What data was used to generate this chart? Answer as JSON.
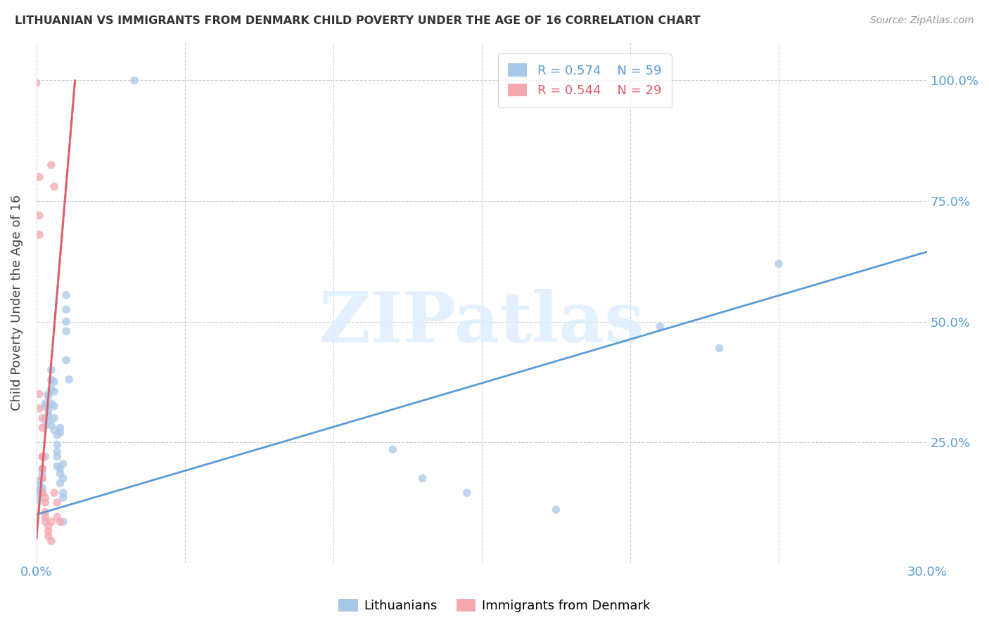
{
  "title": "LITHUANIAN VS IMMIGRANTS FROM DENMARK CHILD POVERTY UNDER THE AGE OF 16 CORRELATION CHART",
  "source": "Source: ZipAtlas.com",
  "ylabel": "Child Poverty Under the Age of 16",
  "legend_blue_r": "R = 0.574",
  "legend_blue_n": "N = 59",
  "legend_pink_r": "R = 0.544",
  "legend_pink_n": "N = 29",
  "blue_color": "#a8c8e8",
  "pink_color": "#f4a8b0",
  "blue_line_color": "#5b9bd5",
  "pink_line_color": "#e05c6a",
  "watermark": "ZIPatlas",
  "blue_scatter": [
    [
      0.0,
      0.145
    ],
    [
      0.001,
      0.15
    ],
    [
      0.001,
      0.16
    ],
    [
      0.001,
      0.17
    ],
    [
      0.001,
      0.13
    ],
    [
      0.002,
      0.175
    ],
    [
      0.002,
      0.155
    ],
    [
      0.002,
      0.195
    ],
    [
      0.002,
      0.145
    ],
    [
      0.002,
      0.185
    ],
    [
      0.003,
      0.22
    ],
    [
      0.003,
      0.3
    ],
    [
      0.003,
      0.325
    ],
    [
      0.003,
      0.33
    ],
    [
      0.003,
      0.285
    ],
    [
      0.004,
      0.345
    ],
    [
      0.004,
      0.315
    ],
    [
      0.004,
      0.35
    ],
    [
      0.004,
      0.295
    ],
    [
      0.004,
      0.305
    ],
    [
      0.005,
      0.36
    ],
    [
      0.005,
      0.38
    ],
    [
      0.005,
      0.285
    ],
    [
      0.005,
      0.4
    ],
    [
      0.005,
      0.33
    ],
    [
      0.006,
      0.275
    ],
    [
      0.006,
      0.325
    ],
    [
      0.006,
      0.355
    ],
    [
      0.006,
      0.375
    ],
    [
      0.006,
      0.3
    ],
    [
      0.007,
      0.265
    ],
    [
      0.007,
      0.245
    ],
    [
      0.007,
      0.2
    ],
    [
      0.007,
      0.22
    ],
    [
      0.007,
      0.23
    ],
    [
      0.008,
      0.185
    ],
    [
      0.008,
      0.195
    ],
    [
      0.008,
      0.165
    ],
    [
      0.008,
      0.28
    ],
    [
      0.008,
      0.27
    ],
    [
      0.009,
      0.145
    ],
    [
      0.009,
      0.205
    ],
    [
      0.009,
      0.135
    ],
    [
      0.009,
      0.085
    ],
    [
      0.009,
      0.175
    ],
    [
      0.01,
      0.555
    ],
    [
      0.01,
      0.525
    ],
    [
      0.01,
      0.48
    ],
    [
      0.01,
      0.5
    ],
    [
      0.01,
      0.42
    ],
    [
      0.011,
      0.38
    ],
    [
      0.033,
      1.0
    ],
    [
      0.12,
      0.235
    ],
    [
      0.13,
      0.175
    ],
    [
      0.145,
      0.145
    ],
    [
      0.175,
      0.11
    ],
    [
      0.21,
      0.49
    ],
    [
      0.23,
      0.445
    ],
    [
      0.25,
      0.62
    ]
  ],
  "pink_scatter": [
    [
      0.0,
      0.995
    ],
    [
      0.001,
      0.8
    ],
    [
      0.001,
      0.72
    ],
    [
      0.001,
      0.68
    ],
    [
      0.001,
      0.35
    ],
    [
      0.001,
      0.32
    ],
    [
      0.002,
      0.3
    ],
    [
      0.002,
      0.28
    ],
    [
      0.002,
      0.22
    ],
    [
      0.002,
      0.22
    ],
    [
      0.002,
      0.195
    ],
    [
      0.002,
      0.175
    ],
    [
      0.002,
      0.145
    ],
    [
      0.003,
      0.135
    ],
    [
      0.003,
      0.125
    ],
    [
      0.003,
      0.105
    ],
    [
      0.003,
      0.095
    ],
    [
      0.003,
      0.085
    ],
    [
      0.004,
      0.075
    ],
    [
      0.004,
      0.065
    ],
    [
      0.004,
      0.055
    ],
    [
      0.005,
      0.045
    ],
    [
      0.005,
      0.085
    ],
    [
      0.005,
      0.825
    ],
    [
      0.006,
      0.78
    ],
    [
      0.006,
      0.145
    ],
    [
      0.007,
      0.125
    ],
    [
      0.007,
      0.095
    ],
    [
      0.008,
      0.085
    ]
  ],
  "xlim": [
    0.0,
    0.3
  ],
  "ylim": [
    0.0,
    1.08
  ],
  "blue_trend_x": [
    0.0,
    0.3
  ],
  "blue_trend_y": [
    0.1,
    0.645
  ],
  "pink_trend_x": [
    0.0,
    0.013
  ],
  "pink_trend_y": [
    0.05,
    1.0
  ]
}
